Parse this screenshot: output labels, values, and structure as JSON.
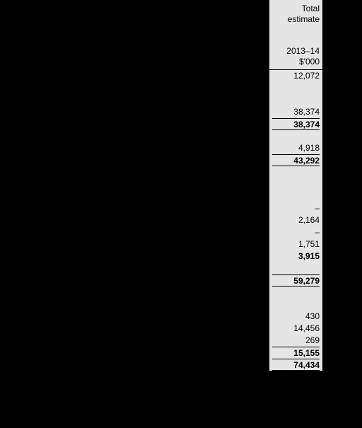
{
  "col": {
    "header": {
      "line1": "Total",
      "line2": "estimate",
      "blank": " ",
      "year": "2013–14",
      "unit": "$'000"
    },
    "rows": [
      {
        "val": "12,072",
        "bold": false,
        "topRule": false,
        "botRule": false
      },
      {
        "val": " ",
        "bold": false,
        "topRule": false,
        "botRule": false
      },
      {
        "val": " ",
        "bold": false,
        "topRule": false,
        "botRule": false
      },
      {
        "val": "38,374",
        "bold": false,
        "topRule": false,
        "botRule": false
      },
      {
        "val": "38,374",
        "bold": true,
        "topRule": true,
        "botRule": true
      },
      {
        "val": " ",
        "bold": false,
        "topRule": false,
        "botRule": false
      },
      {
        "val": "4,918",
        "bold": false,
        "topRule": false,
        "botRule": false
      },
      {
        "val": "43,292",
        "bold": true,
        "topRule": true,
        "botRule": true
      },
      {
        "val": " ",
        "bold": false,
        "topRule": false,
        "botRule": false
      },
      {
        "val": " ",
        "bold": false,
        "topRule": false,
        "botRule": false
      },
      {
        "val": " ",
        "bold": false,
        "topRule": false,
        "botRule": false
      },
      {
        "val": "–",
        "bold": false,
        "topRule": false,
        "botRule": false
      },
      {
        "val": "2,164",
        "bold": false,
        "topRule": false,
        "botRule": false
      },
      {
        "val": "–",
        "bold": false,
        "topRule": false,
        "botRule": false
      },
      {
        "val": "1,751",
        "bold": false,
        "topRule": false,
        "botRule": false
      },
      {
        "val": "3,915",
        "bold": true,
        "topRule": false,
        "botRule": false
      },
      {
        "val": " ",
        "bold": false,
        "topRule": false,
        "botRule": false
      },
      {
        "val": "59,279",
        "bold": true,
        "topRule": true,
        "botRule": true
      },
      {
        "val": " ",
        "bold": false,
        "topRule": false,
        "botRule": false
      },
      {
        "val": " ",
        "bold": false,
        "topRule": false,
        "botRule": false
      },
      {
        "val": "430",
        "bold": false,
        "topRule": false,
        "botRule": false
      },
      {
        "val": "14,456",
        "bold": false,
        "topRule": false,
        "botRule": false
      },
      {
        "val": "269",
        "bold": false,
        "topRule": false,
        "botRule": false
      },
      {
        "val": "15,155",
        "bold": true,
        "topRule": true,
        "botRule": false
      },
      {
        "val": "74,434",
        "bold": true,
        "topRule": true,
        "botRule": true
      }
    ]
  }
}
